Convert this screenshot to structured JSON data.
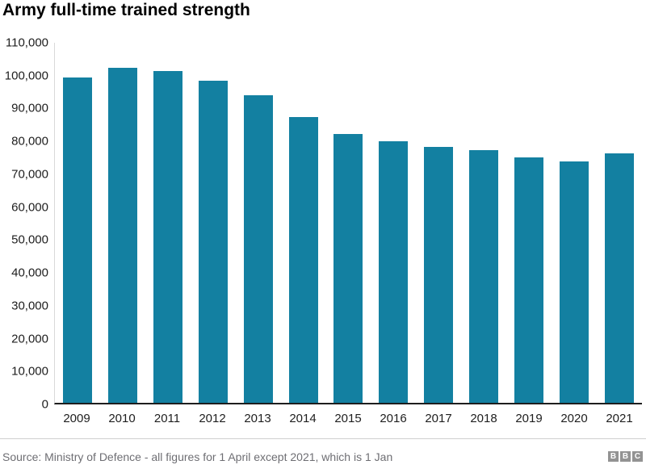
{
  "chart": {
    "title": "Army full-time trained strength",
    "bar_color": "#1380a1",
    "axis_line_color": "#d9d9d9",
    "baseline_color": "#1e1e1e",
    "tick_label_color": "#1e1e1e"
  },
  "chart_data": {
    "type": "bar",
    "title": "Army full-time trained strength",
    "categories": [
      "2009",
      "2010",
      "2011",
      "2012",
      "2013",
      "2014",
      "2015",
      "2016",
      "2017",
      "2018",
      "2019",
      "2020",
      "2021"
    ],
    "values": [
      99300,
      102300,
      101400,
      98400,
      94000,
      87300,
      82200,
      79800,
      78300,
      77100,
      75100,
      73700,
      76300
    ],
    "xlabel": "",
    "ylabel": "",
    "ylim": [
      0,
      110000
    ],
    "ytick_step": 10000,
    "ytick_labels": [
      "0",
      "10,000",
      "20,000",
      "30,000",
      "40,000",
      "50,000",
      "60,000",
      "70,000",
      "80,000",
      "90,000",
      "100,000",
      "110,000"
    ],
    "grid": false,
    "legend_position": "none",
    "bar_color": "#1380a1"
  },
  "footer": {
    "source": "Source: Ministry of Defence - all figures for 1 April except 2021, which is 1 Jan",
    "logo_blocks": [
      "B",
      "B",
      "C"
    ]
  }
}
